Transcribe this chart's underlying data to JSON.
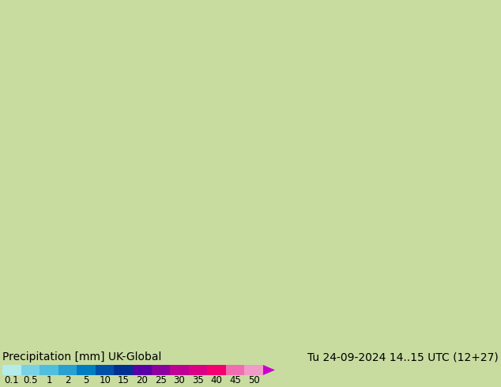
{
  "title_left": "Precipitation [mm] UK-Global",
  "title_right": "Tu 24-09-2024 14..15 UTC (12+27)",
  "colorbar_levels": [
    "0.1",
    "0.5",
    "1",
    "2",
    "5",
    "10",
    "15",
    "20",
    "25",
    "30",
    "35",
    "40",
    "45",
    "50"
  ],
  "colorbar_colors": [
    "#b4ecec",
    "#78d2e6",
    "#50bede",
    "#28a0d0",
    "#007dc0",
    "#0050a8",
    "#003090",
    "#5a00a8",
    "#8c009e",
    "#be0094",
    "#dc0084",
    "#f50070",
    "#f06eb0",
    "#f09bc8"
  ],
  "arrow_color": "#cc00cc",
  "bg_color": "#c8dca0",
  "font_size_title": 10,
  "font_size_ticks": 8.5,
  "fig_width": 6.34,
  "fig_height": 4.9,
  "dpi": 100
}
